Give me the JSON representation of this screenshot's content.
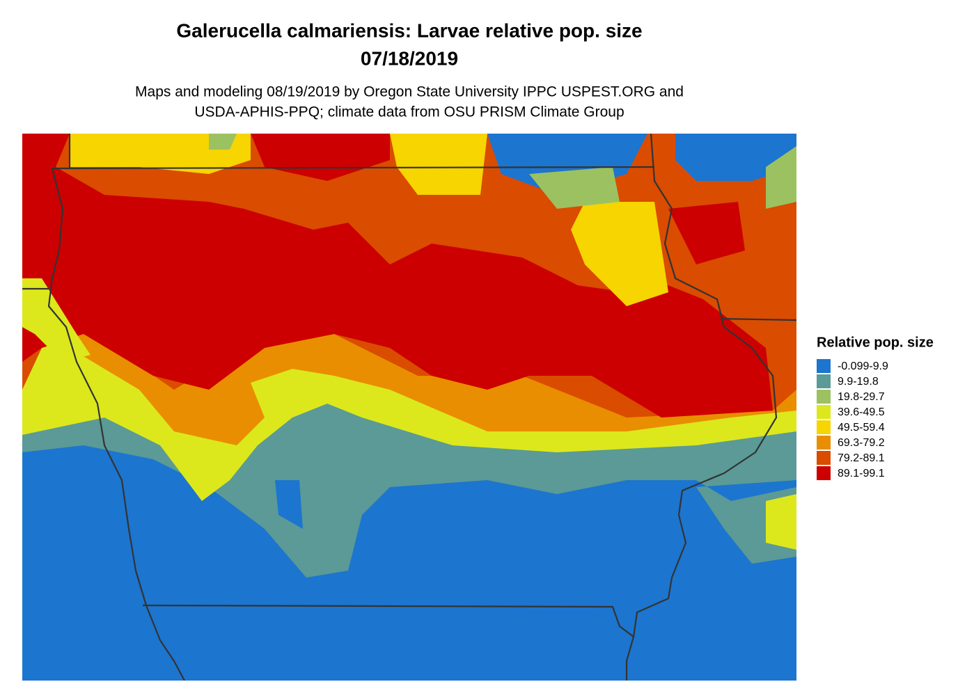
{
  "title": [
    "Galerucella calmariensis: Larvae relative pop. size",
    "07/18/2019"
  ],
  "subtitle": [
    "Maps and modeling 08/19/2019 by Oregon State University IPPC USPEST.ORG and",
    "USDA-APHIS-PPQ; climate data from OSU PRISM Climate Group"
  ],
  "legend": {
    "title": "Relative pop. size",
    "items": [
      {
        "label": "-0.099-9.9",
        "color": "#1c75cf"
      },
      {
        "label": "9.9-19.8",
        "color": "#5b9a96"
      },
      {
        "label": "19.8-29.7",
        "color": "#9cc161"
      },
      {
        "label": "39.6-49.5",
        "color": "#dce81c"
      },
      {
        "label": "49.5-59.4",
        "color": "#f6d500"
      },
      {
        "label": "69.3-79.2",
        "color": "#e98e00"
      },
      {
        "label": "79.2-89.1",
        "color": "#da4c00"
      },
      {
        "label": "89.1-99.1",
        "color": "#cc0000"
      }
    ]
  }
}
